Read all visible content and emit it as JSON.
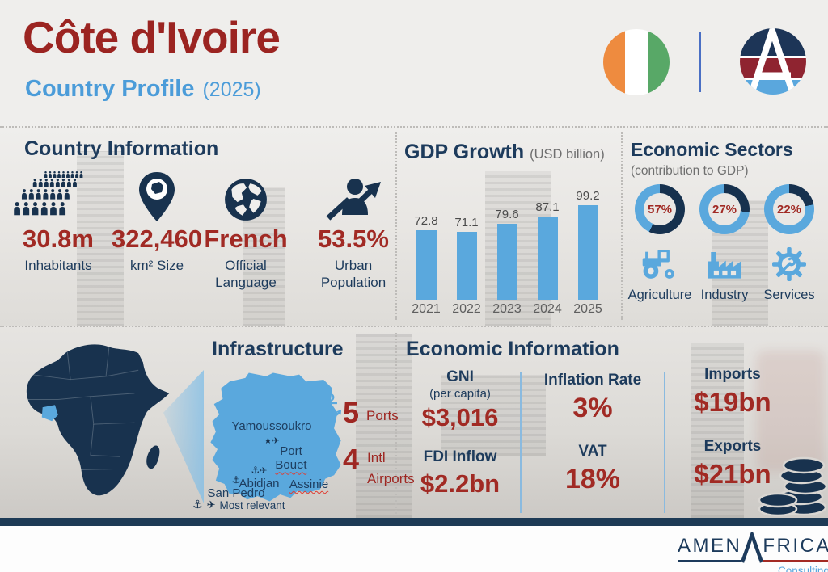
{
  "colors": {
    "accent_red": "#9b2421",
    "value_red": "#a12a24",
    "navy": "#1d3b5c",
    "navy_dark": "#18324e",
    "light_blue": "#5aa8dd",
    "subtitle_blue": "#4b9cd9",
    "gray_text": "#6f6f6f"
  },
  "header": {
    "title": "Côte d'Ivoire",
    "subtitle": "Country Profile",
    "year": "(2025)",
    "flag_icon": "cote-divoire-flag",
    "logo_icon": "amen-africa-logo"
  },
  "country_information": {
    "title": "Country Information",
    "stats": [
      {
        "icon": "population-crowd-icon",
        "value": "30.8m",
        "label": "Inhabitants"
      },
      {
        "icon": "map-pin-icon",
        "value": "322,460",
        "label": "km² Size"
      },
      {
        "icon": "globe-icon",
        "value": "French",
        "label": "Official Language"
      },
      {
        "icon": "urban-growth-icon",
        "value": "53.5%",
        "label": "Urban Population"
      }
    ]
  },
  "chart_data": [
    {
      "type": "bar",
      "title": "GDP Growth",
      "subtitle": "(USD billion)",
      "categories": [
        "2021",
        "2022",
        "2023",
        "2024",
        "2025"
      ],
      "values": [
        72.8,
        71.1,
        79.6,
        87.1,
        99.2
      ],
      "value_labels": [
        "72.8",
        "71.1",
        "79.6",
        "87.1",
        "99.2"
      ],
      "ylim": [
        0,
        99.2
      ],
      "bar_color": "#5aa8dd",
      "grid": "off",
      "legend": "none"
    },
    {
      "type": "donut",
      "title": "Economic Sectors",
      "subtitle": "(contribution to GDP)",
      "categories": [
        "Agriculture",
        "Industry",
        "Services"
      ],
      "values": [
        57,
        27,
        22
      ],
      "value_labels": [
        "57%",
        "27%",
        "22%"
      ],
      "filled_color": "#16314e",
      "track_color": "#5aa8dd",
      "icons": [
        "tractor-icon",
        "factory-icon",
        "gear-wrench-icon"
      ]
    }
  ],
  "infrastructure": {
    "title": "Infrastructure",
    "cities": [
      {
        "name": "Yamoussoukro",
        "markers": [
          "capital-star-icon",
          "airport-plane-icon"
        ]
      },
      {
        "name": "Port Bouet",
        "name_line1": "Port",
        "name_line2": "Bouet",
        "markers": []
      },
      {
        "name": "Abidjan",
        "markers": [
          "port-anchor-icon",
          "airport-plane-icon"
        ]
      },
      {
        "name": "Assinie",
        "markers": []
      },
      {
        "name": "San Pedro",
        "markers": [
          "port-anchor-icon"
        ]
      }
    ],
    "legend": "Most relevant",
    "stats": [
      {
        "icon": "port-anchor-icon",
        "value": "5",
        "label": "Ports"
      },
      {
        "icon": "airport-plane-icon",
        "value": "4",
        "label": "Intl Airports"
      }
    ]
  },
  "economic_information": {
    "title": "Economic Information",
    "items": [
      {
        "label": "GNI",
        "sublabel": "(per capita)",
        "value": "$3,016"
      },
      {
        "label": "Inflation Rate",
        "sublabel": "",
        "value": "3%"
      },
      {
        "label": "FDI Inflow",
        "sublabel": "",
        "value": "$2.2bn"
      },
      {
        "label": "VAT",
        "sublabel": "",
        "value": "18%"
      },
      {
        "label": "Imports",
        "sublabel": "",
        "value": "$19bn"
      },
      {
        "label": "Exports",
        "sublabel": "",
        "value": "$21bn"
      }
    ],
    "coins_icon": "coins-stack-icon"
  },
  "footer": {
    "brand_left": "AMEN",
    "brand_right": "FRICA",
    "brand_sub": "Consulting"
  }
}
